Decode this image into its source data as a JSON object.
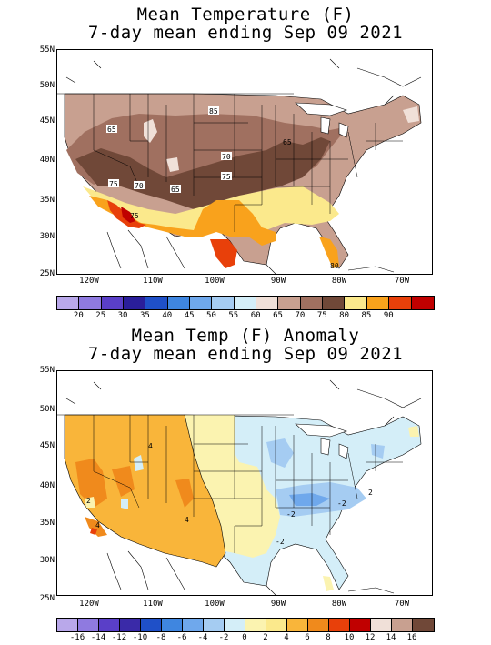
{
  "maps": [
    {
      "title_line1": "Mean Temperature (F)",
      "title_line2": "7-day mean ending Sep 09 2021",
      "lat_labels": [
        "55N",
        "50N",
        "45N",
        "40N",
        "35N",
        "30N",
        "25N"
      ],
      "lon_labels": [
        "120W",
        "110W",
        "100W",
        "90W",
        "80W",
        "70W"
      ],
      "contour_labels": [
        "65",
        "85",
        "70",
        "75",
        "75",
        "70",
        "65",
        "65",
        "75",
        "80"
      ],
      "colorbar": {
        "labels": [
          "20",
          "25",
          "30",
          "35",
          "40",
          "45",
          "50",
          "55",
          "60",
          "65",
          "70",
          "75",
          "80",
          "85",
          "90"
        ],
        "colors": [
          "#b9a8ea",
          "#8f7ae0",
          "#5a3fc8",
          "#2a1e9a",
          "#1f50c8",
          "#3f86e0",
          "#6fa8ec",
          "#a5ccf2",
          "#d4eef8",
          "#f0e0d8",
          "#c8a090",
          "#a07060",
          "#704838",
          "#fbe98c",
          "#f9a21c",
          "#e8400a",
          "#c00000"
        ]
      }
    },
    {
      "title_line1": "Mean Temp (F) Anomaly",
      "title_line2": "7-day mean ending Sep 09 2021",
      "lat_labels": [
        "55N",
        "50N",
        "45N",
        "40N",
        "35N",
        "30N",
        "25N"
      ],
      "lon_labels": [
        "120W",
        "110W",
        "100W",
        "90W",
        "80W",
        "70W"
      ],
      "contour_labels": [
        "4",
        "2",
        "4",
        "4",
        "-2",
        "-2",
        "-2",
        "2"
      ],
      "colorbar": {
        "labels": [
          "-16",
          "-14",
          "-12",
          "-10",
          "-8",
          "-6",
          "-4",
          "-2",
          "0",
          "2",
          "4",
          "6",
          "8",
          "10",
          "12",
          "14",
          "16"
        ],
        "colors": [
          "#b9a8ea",
          "#8f7ae0",
          "#5a3fc8",
          "#3a2aa8",
          "#1f50c8",
          "#3f86e0",
          "#6fa8ec",
          "#a5ccf2",
          "#d4eef8",
          "#fbf3b0",
          "#fbe98c",
          "#f9b53a",
          "#f08a1c",
          "#e8400a",
          "#c00000",
          "#f0e0d8",
          "#c8a090",
          "#704838"
        ]
      }
    }
  ]
}
